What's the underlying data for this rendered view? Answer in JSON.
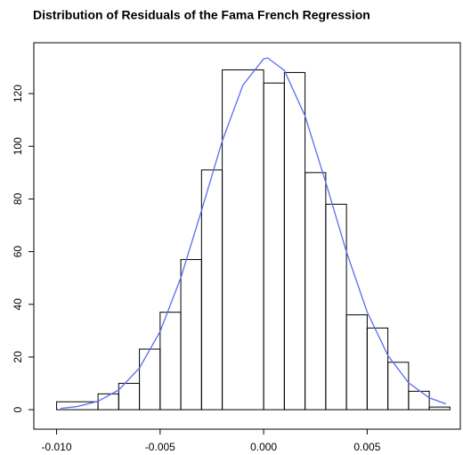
{
  "chart_data": {
    "type": "histogram",
    "title": "Distribution of Residuals of the Fama French Regression",
    "bins": [
      -0.01,
      -0.008,
      -0.007,
      -0.006,
      -0.005,
      -0.004,
      -0.003,
      -0.002,
      0.0,
      0.001,
      0.002,
      0.003,
      0.004,
      0.005,
      0.006,
      0.007,
      0.008,
      0.009
    ],
    "values": [
      3,
      6,
      10,
      23,
      37,
      57,
      91,
      129,
      124,
      128,
      90,
      78,
      36,
      31,
      18,
      7,
      1
    ],
    "color": "#000000",
    "curve": {
      "type": "line",
      "color": "#5b6cf0",
      "x": [
        -0.0098,
        -0.009,
        -0.008,
        -0.007,
        -0.006,
        -0.005,
        -0.004,
        -0.003,
        -0.002,
        -0.001,
        0.0,
        0.0002,
        0.001,
        0.002,
        0.003,
        0.004,
        0.005,
        0.006,
        0.007,
        0.008,
        0.0088
      ],
      "values": [
        0.5,
        1.2,
        3.2,
        7.5,
        15.8,
        29.7,
        50.1,
        75.6,
        102,
        123.2,
        133.2,
        133.5,
        128.8,
        111.5,
        86.3,
        59.9,
        37.1,
        20.6,
        10.2,
        4.5,
        2.2
      ]
    },
    "xlim": [
      -0.0111,
      0.0095
    ],
    "ylim": [
      -7.4,
      139.3
    ],
    "xticks": [
      {
        "value": -0.01,
        "label": "-0.010"
      },
      {
        "value": -0.005,
        "label": "-0.005"
      },
      {
        "value": 0.0,
        "label": "0.000"
      },
      {
        "value": 0.005,
        "label": "0.005"
      }
    ],
    "yticks": [
      0,
      20,
      40,
      60,
      80,
      100,
      120
    ]
  }
}
